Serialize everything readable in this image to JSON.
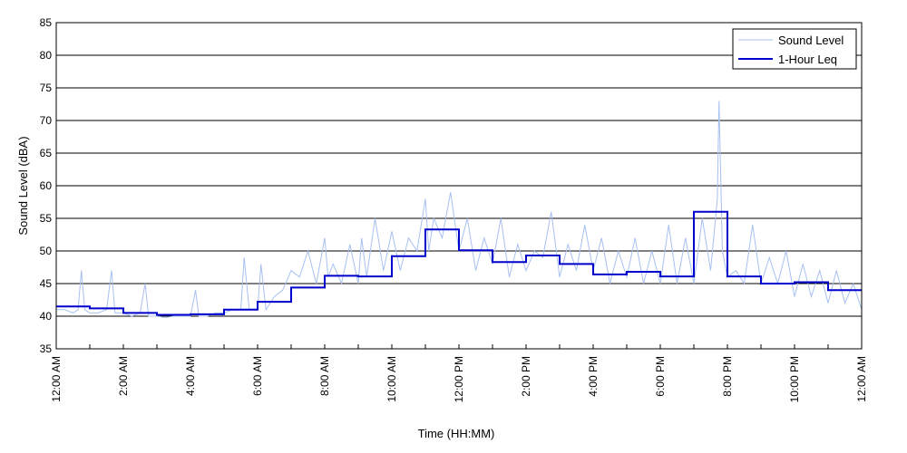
{
  "chart_data": {
    "type": "line",
    "xlabel": "Time (HH:MM)",
    "ylabel": "Sound Level (dBA)",
    "x_unit": "hours since 12:00 AM",
    "xlim": [
      0,
      24
    ],
    "ylim": [
      35,
      85
    ],
    "y_ticks": [
      35,
      40,
      45,
      50,
      55,
      60,
      65,
      70,
      75,
      80,
      85
    ],
    "x_tick_labels": [
      {
        "hour": 0,
        "label": "12:00 AM"
      },
      {
        "hour": 2,
        "label": "2:00 AM"
      },
      {
        "hour": 4,
        "label": "4:00 AM"
      },
      {
        "hour": 6,
        "label": "6:00 AM"
      },
      {
        "hour": 8,
        "label": "8:00 AM"
      },
      {
        "hour": 10,
        "label": "10:00 AM"
      },
      {
        "hour": 12,
        "label": "12:00 PM"
      },
      {
        "hour": 14,
        "label": "2:00 PM"
      },
      {
        "hour": 16,
        "label": "4:00 PM"
      },
      {
        "hour": 18,
        "label": "6:00 PM"
      },
      {
        "hour": 20,
        "label": "8:00 PM"
      },
      {
        "hour": 22,
        "label": "10:00 PM"
      },
      {
        "hour": 24,
        "label": "12:00 AM"
      }
    ],
    "grid": "horizontal",
    "legend_position": "top-right",
    "series": [
      {
        "name": "Sound Level",
        "style": "thin-line",
        "color": "#a8c0f0",
        "x": [
          0,
          0.25,
          0.5,
          0.65,
          0.75,
          0.85,
          1,
          1.25,
          1.5,
          1.65,
          1.75,
          2,
          2.25,
          2.5,
          2.65,
          2.75,
          3,
          3.25,
          3.5,
          3.75,
          4,
          4.15,
          4.25,
          4.5,
          4.75,
          5,
          5.25,
          5.5,
          5.6,
          5.75,
          6,
          6.1,
          6.25,
          6.5,
          6.75,
          7,
          7.25,
          7.5,
          7.75,
          8,
          8.1,
          8.25,
          8.5,
          8.75,
          9,
          9.1,
          9.25,
          9.5,
          9.75,
          10,
          10.25,
          10.5,
          10.75,
          11,
          11.1,
          11.25,
          11.5,
          11.75,
          12,
          12.25,
          12.5,
          12.75,
          13,
          13.25,
          13.5,
          13.75,
          14,
          14.25,
          14.5,
          14.75,
          15,
          15.25,
          15.5,
          15.75,
          16,
          16.25,
          16.5,
          16.75,
          17,
          17.25,
          17.5,
          17.75,
          18,
          18.25,
          18.5,
          18.75,
          19,
          19.25,
          19.5,
          19.7,
          19.75,
          19.85,
          20,
          20.25,
          20.5,
          20.75,
          21,
          21.25,
          21.5,
          21.75,
          22,
          22.25,
          22.5,
          22.75,
          23,
          23.25,
          23.5,
          23.75,
          24
        ],
        "y": [
          41,
          41,
          40.5,
          41,
          47,
          41,
          40.5,
          40.5,
          41,
          47,
          40.5,
          40.5,
          40,
          40.5,
          45,
          40,
          40,
          39.8,
          40,
          40,
          40,
          44,
          40,
          40,
          40.5,
          40.5,
          41,
          41,
          49,
          41,
          41,
          48,
          41,
          43,
          44,
          47,
          46,
          50,
          45,
          52,
          46,
          48,
          45,
          51,
          45,
          52,
          46,
          55,
          47,
          53,
          47,
          52,
          50,
          58,
          50,
          55,
          52,
          59,
          50,
          55,
          47,
          52,
          48,
          55,
          46,
          51,
          47,
          50,
          49,
          56,
          46,
          51,
          47,
          54,
          47,
          52,
          45,
          50,
          46,
          52,
          45,
          50,
          45,
          54,
          45,
          52,
          45,
          55,
          47,
          58,
          73,
          50,
          46,
          47,
          45,
          54,
          45,
          49,
          45,
          50,
          43,
          48,
          43,
          47,
          42,
          47,
          42,
          45,
          41
        ]
      },
      {
        "name": "1-Hour Leq",
        "style": "step",
        "color": "#0000cc",
        "hour_starts": [
          0,
          1,
          2,
          3,
          4,
          5,
          6,
          7,
          8,
          9,
          10,
          11,
          12,
          13,
          14,
          15,
          16,
          17,
          18,
          19,
          20,
          21,
          22,
          23
        ],
        "values": [
          41.5,
          41.2,
          40.5,
          40.2,
          40.3,
          41.0,
          42.2,
          44.4,
          46.2,
          46.1,
          49.2,
          53.3,
          50.1,
          48.3,
          49.3,
          48.0,
          46.4,
          46.8,
          46.1,
          56.0,
          46.1,
          45.0,
          45.2,
          44.0
        ]
      }
    ]
  }
}
